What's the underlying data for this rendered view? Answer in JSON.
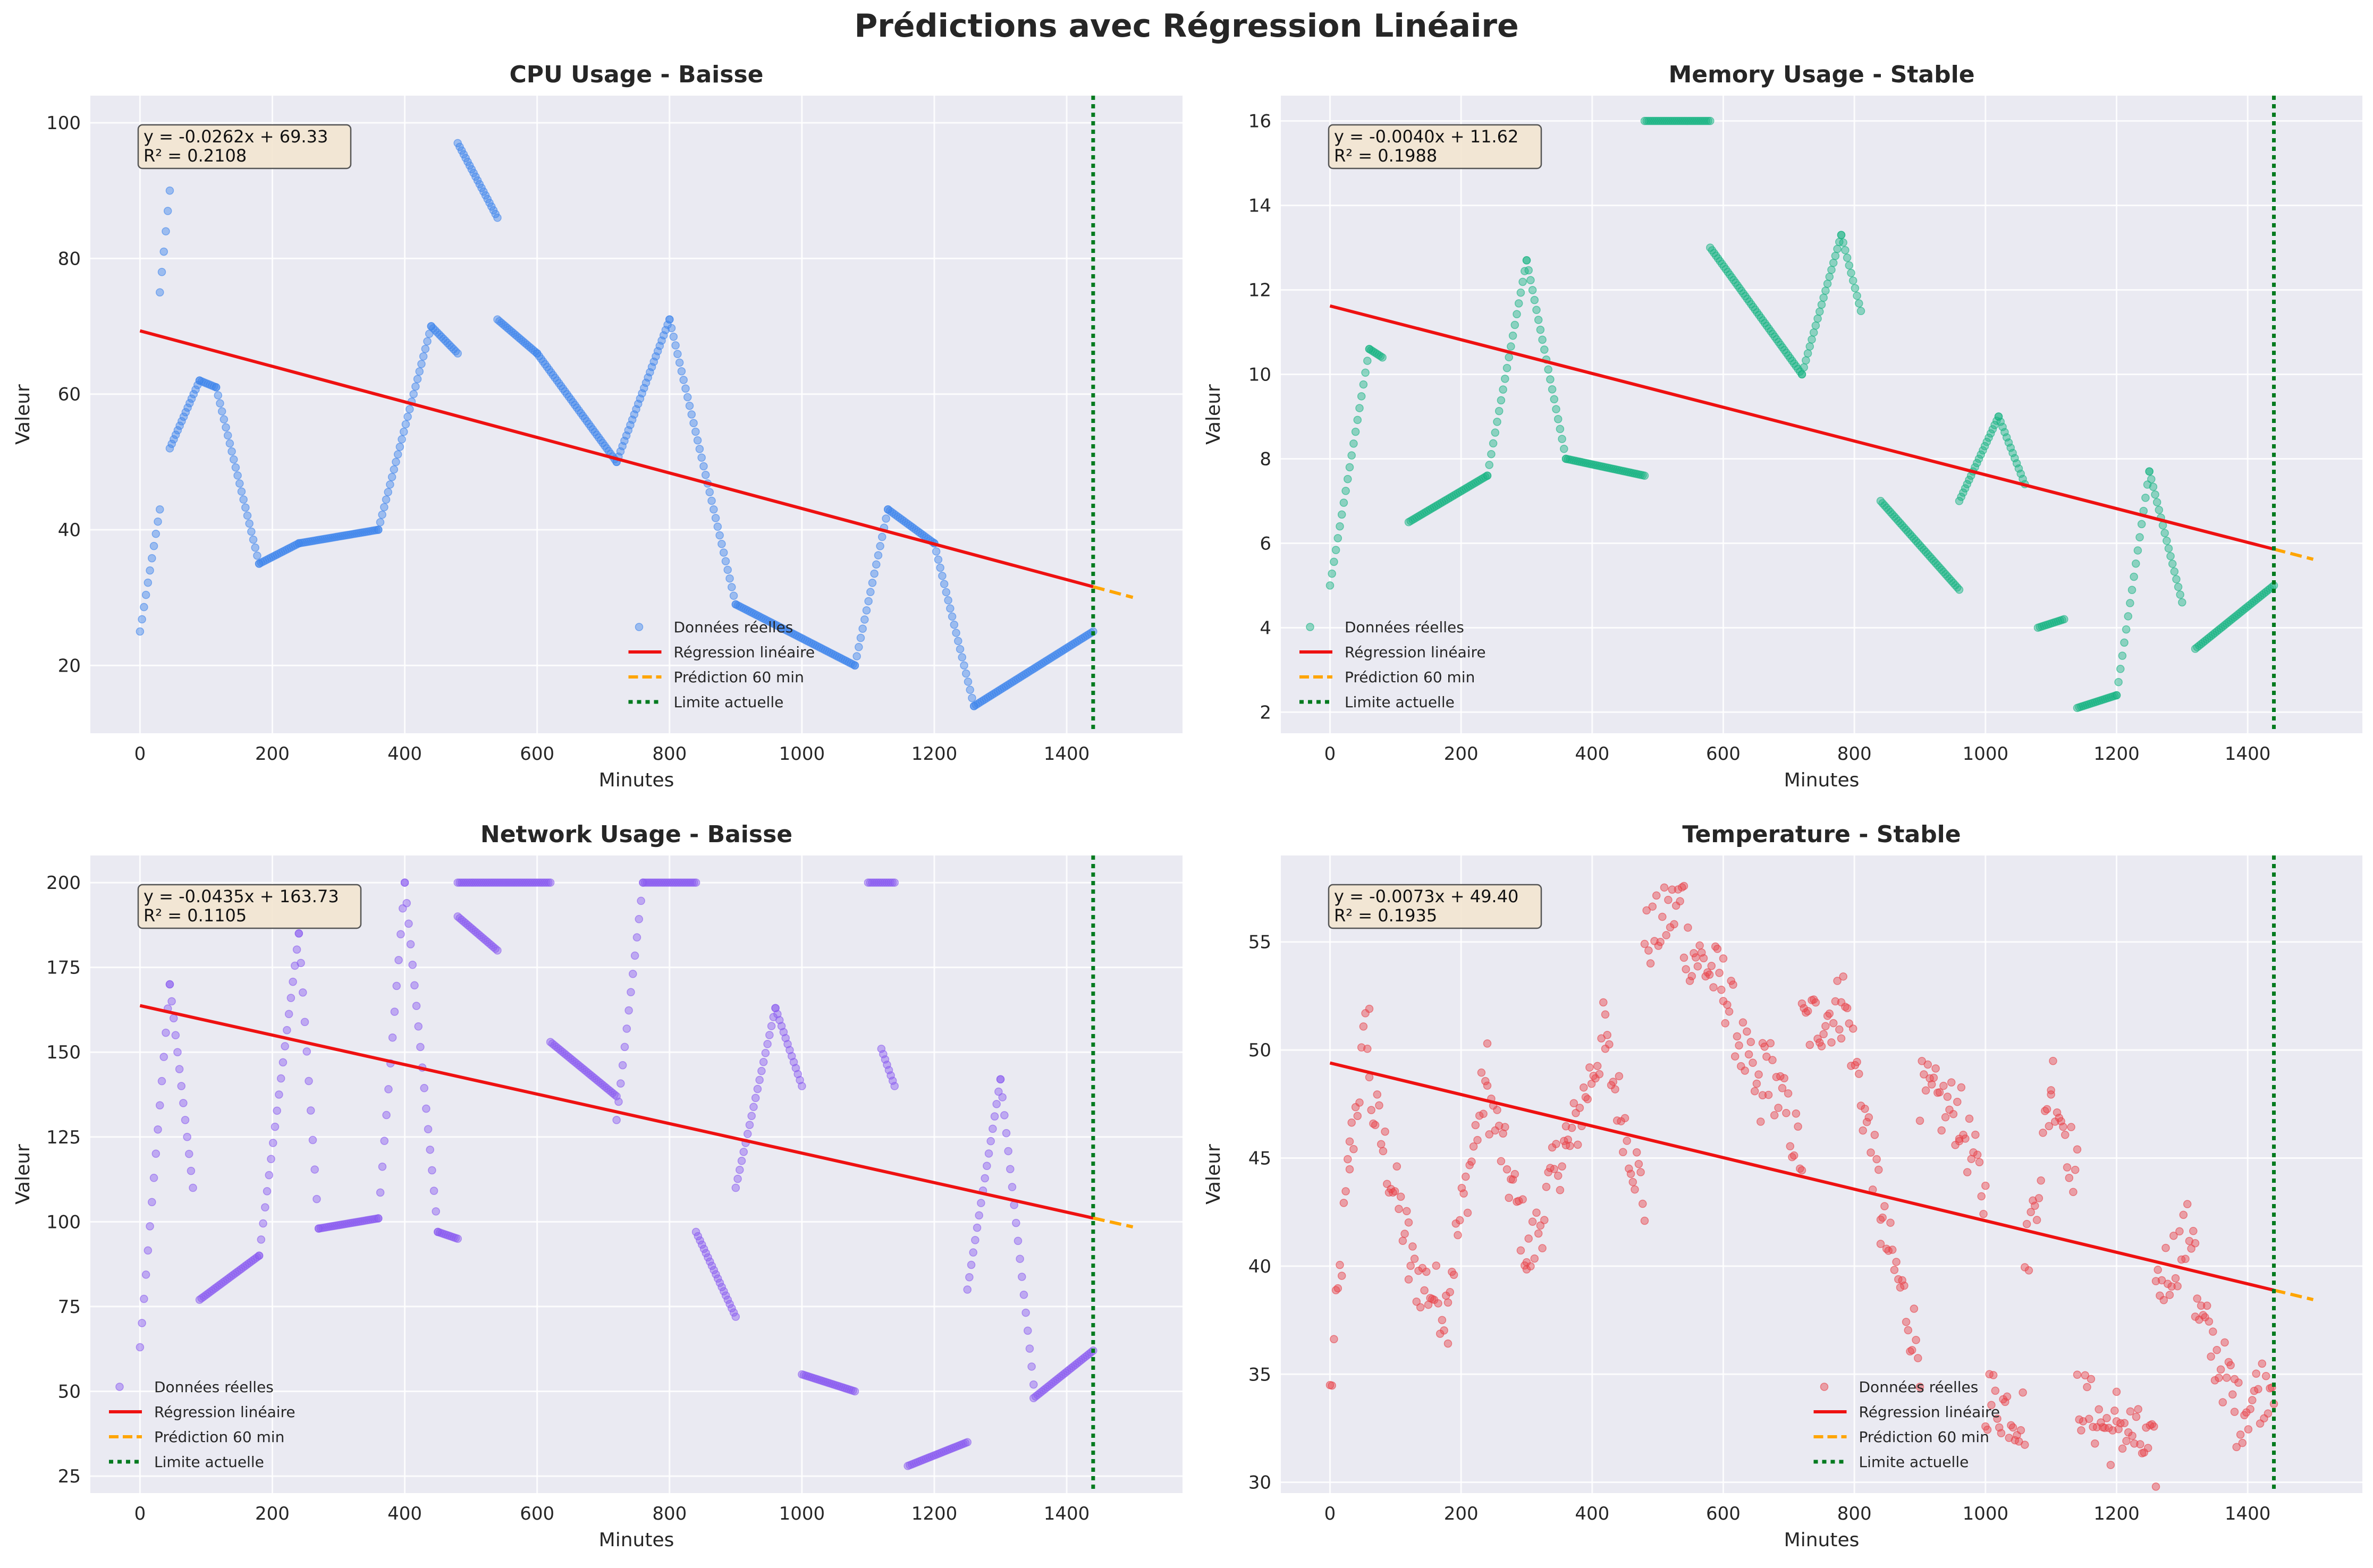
{
  "suptitle": "Prédictions avec Régression Linéaire",
  "legend_labels": {
    "real": "Données réelles",
    "regression": "Régression linéaire",
    "prediction": "Prédiction 60 min",
    "limit": "Limite actuelle"
  },
  "colors": {
    "regression": "#ee1111",
    "prediction": "#ffa500",
    "limit": "#007a1f",
    "background": "#eaeaf2",
    "grid": "#ffffff",
    "annotation_bg": "#f3e6d0"
  },
  "chart_data": [
    {
      "type": "scatter",
      "title": "CPU Usage - Baisse",
      "xlabel": "Minutes",
      "ylabel": "Valeur",
      "xlim": [
        -75,
        1575
      ],
      "ylim": [
        10,
        104
      ],
      "xticks": [
        0,
        200,
        400,
        600,
        800,
        1000,
        1200,
        1400
      ],
      "yticks": [
        20,
        40,
        60,
        80,
        100
      ],
      "color": "#3f86ec",
      "annotation": [
        "y = -0.0262x + 69.33",
        "R² = 0.2108"
      ],
      "regression": {
        "slope": -0.0262,
        "intercept": 69.33,
        "x_end": 1440,
        "pred_end": 1500
      },
      "limit_x": 1440,
      "legend": "lower-center",
      "series": [
        {
          "name": "Données réelles",
          "segments": [
            {
              "x0": 0,
              "x1": 30,
              "y0": 25,
              "y1": 43
            },
            {
              "x0": 30,
              "x1": 45,
              "y0": 75,
              "y1": 90
            },
            {
              "x0": 45,
              "x1": 90,
              "y0": 52,
              "y1": 62
            },
            {
              "x0": 90,
              "x1": 115,
              "y0": 62,
              "y1": 61
            },
            {
              "x0": 115,
              "x1": 180,
              "y0": 61,
              "y1": 35
            },
            {
              "x0": 180,
              "x1": 240,
              "y0": 35,
              "y1": 38
            },
            {
              "x0": 240,
              "x1": 360,
              "y0": 38,
              "y1": 40
            },
            {
              "x0": 360,
              "x1": 440,
              "y0": 40,
              "y1": 70
            },
            {
              "x0": 440,
              "x1": 480,
              "y0": 70,
              "y1": 66
            },
            {
              "x0": 480,
              "x1": 540,
              "y0": 97,
              "y1": 86
            },
            {
              "x0": 540,
              "x1": 600,
              "y0": 71,
              "y1": 66
            },
            {
              "x0": 600,
              "x1": 720,
              "y0": 66,
              "y1": 50
            },
            {
              "x0": 720,
              "x1": 800,
              "y0": 50,
              "y1": 71
            },
            {
              "x0": 800,
              "x1": 900,
              "y0": 71,
              "y1": 29
            },
            {
              "x0": 900,
              "x1": 1080,
              "y0": 29,
              "y1": 20
            },
            {
              "x0": 1080,
              "x1": 1130,
              "y0": 20,
              "y1": 43
            },
            {
              "x0": 1130,
              "x1": 1200,
              "y0": 43,
              "y1": 38
            },
            {
              "x0": 1200,
              "x1": 1260,
              "y0": 38,
              "y1": 14
            },
            {
              "x0": 1260,
              "x1": 1440,
              "y0": 14,
              "y1": 25
            }
          ]
        }
      ]
    },
    {
      "type": "scatter",
      "title": "Memory Usage - Stable",
      "xlabel": "Minutes",
      "ylabel": "Valeur",
      "xlim": [
        -75,
        1575
      ],
      "ylim": [
        1.5,
        16.6
      ],
      "xticks": [
        0,
        200,
        400,
        600,
        800,
        1000,
        1200,
        1400
      ],
      "yticks": [
        2,
        4,
        6,
        8,
        10,
        12,
        14,
        16
      ],
      "color": "#18b482",
      "annotation": [
        "y = -0.0040x + 11.62",
        "R² = 0.1988"
      ],
      "regression": {
        "slope": -0.004,
        "intercept": 11.62,
        "x_end": 1440,
        "pred_end": 1500
      },
      "limit_x": 1440,
      "legend": "lower-left",
      "series": [
        {
          "name": "Données réelles",
          "segments": [
            {
              "x0": 0,
              "x1": 60,
              "y0": 5,
              "y1": 10.6
            },
            {
              "x0": 60,
              "x1": 80,
              "y0": 10.6,
              "y1": 10.4
            },
            {
              "x0": 120,
              "x1": 240,
              "y0": 6.5,
              "y1": 7.6
            },
            {
              "x0": 240,
              "x1": 300,
              "y0": 7.6,
              "y1": 12.7
            },
            {
              "x0": 300,
              "x1": 360,
              "y0": 12.7,
              "y1": 8
            },
            {
              "x0": 360,
              "x1": 480,
              "y0": 8,
              "y1": 7.6
            },
            {
              "x0": 480,
              "x1": 580,
              "y0": 16,
              "y1": 16
            },
            {
              "x0": 580,
              "x1": 720,
              "y0": 13,
              "y1": 10
            },
            {
              "x0": 720,
              "x1": 780,
              "y0": 10,
              "y1": 13.3
            },
            {
              "x0": 780,
              "x1": 810,
              "y0": 13.3,
              "y1": 11.5
            },
            {
              "x0": 840,
              "x1": 960,
              "y0": 7,
              "y1": 4.9
            },
            {
              "x0": 960,
              "x1": 1020,
              "y0": 7,
              "y1": 9
            },
            {
              "x0": 1020,
              "x1": 1060,
              "y0": 9,
              "y1": 7.4
            },
            {
              "x0": 1080,
              "x1": 1120,
              "y0": 4,
              "y1": 4.2
            },
            {
              "x0": 1140,
              "x1": 1200,
              "y0": 2.1,
              "y1": 2.4
            },
            {
              "x0": 1200,
              "x1": 1250,
              "y0": 2.4,
              "y1": 7.7
            },
            {
              "x0": 1250,
              "x1": 1300,
              "y0": 7.7,
              "y1": 4.6
            },
            {
              "x0": 1320,
              "x1": 1440,
              "y0": 3.5,
              "y1": 5
            }
          ]
        }
      ]
    },
    {
      "type": "scatter",
      "title": "Network Usage - Baisse",
      "xlabel": "Minutes",
      "ylabel": "Valeur",
      "xlim": [
        -75,
        1575
      ],
      "ylim": [
        20,
        208
      ],
      "xticks": [
        0,
        200,
        400,
        600,
        800,
        1000,
        1200,
        1400
      ],
      "yticks": [
        25,
        50,
        75,
        100,
        125,
        150,
        175,
        200
      ],
      "color": "#8a5cf0",
      "annotation": [
        "y = -0.0435x + 163.73",
        "R² = 0.1105"
      ],
      "regression": {
        "slope": -0.0435,
        "intercept": 163.73,
        "x_end": 1440,
        "pred_end": 1500
      },
      "limit_x": 1440,
      "legend": "lower-left",
      "series": [
        {
          "name": "Données réelles",
          "segments": [
            {
              "x0": 0,
              "x1": 45,
              "y0": 63,
              "y1": 170
            },
            {
              "x0": 45,
              "x1": 80,
              "y0": 170,
              "y1": 110
            },
            {
              "x0": 90,
              "x1": 180,
              "y0": 77,
              "y1": 90
            },
            {
              "x0": 180,
              "x1": 240,
              "y0": 90,
              "y1": 185
            },
            {
              "x0": 240,
              "x1": 270,
              "y0": 185,
              "y1": 98
            },
            {
              "x0": 270,
              "x1": 360,
              "y0": 98,
              "y1": 101
            },
            {
              "x0": 360,
              "x1": 400,
              "y0": 101,
              "y1": 200
            },
            {
              "x0": 400,
              "x1": 450,
              "y0": 200,
              "y1": 97
            },
            {
              "x0": 450,
              "x1": 480,
              "y0": 97,
              "y1": 95
            },
            {
              "x0": 480,
              "x1": 540,
              "y0": 190,
              "y1": 180
            },
            {
              "x0": 480,
              "x1": 620,
              "y0": 200,
              "y1": 200
            },
            {
              "x0": 620,
              "x1": 720,
              "y0": 153,
              "y1": 137
            },
            {
              "x0": 720,
              "x1": 760,
              "y0": 130,
              "y1": 200
            },
            {
              "x0": 760,
              "x1": 840,
              "y0": 200,
              "y1": 200
            },
            {
              "x0": 840,
              "x1": 900,
              "y0": 97,
              "y1": 72
            },
            {
              "x0": 900,
              "x1": 960,
              "y0": 110,
              "y1": 163
            },
            {
              "x0": 960,
              "x1": 1000,
              "y0": 163,
              "y1": 140
            },
            {
              "x0": 1000,
              "x1": 1080,
              "y0": 55,
              "y1": 50
            },
            {
              "x0": 1100,
              "x1": 1140,
              "y0": 200,
              "y1": 200
            },
            {
              "x0": 1120,
              "x1": 1140,
              "y0": 151,
              "y1": 140
            },
            {
              "x0": 1160,
              "x1": 1250,
              "y0": 28,
              "y1": 35
            },
            {
              "x0": 1250,
              "x1": 1300,
              "y0": 80,
              "y1": 142
            },
            {
              "x0": 1300,
              "x1": 1350,
              "y0": 142,
              "y1": 52
            },
            {
              "x0": 1350,
              "x1": 1440,
              "y0": 48,
              "y1": 62
            }
          ]
        }
      ]
    },
    {
      "type": "scatter",
      "title": "Temperature - Stable",
      "xlabel": "Minutes",
      "ylabel": "Valeur",
      "xlim": [
        -75,
        1575
      ],
      "ylim": [
        29.5,
        59
      ],
      "xticks": [
        0,
        200,
        400,
        600,
        800,
        1000,
        1200,
        1400
      ],
      "yticks": [
        30,
        35,
        40,
        45,
        50,
        55
      ],
      "color": "#e8434a",
      "annotation": [
        "y = -0.0073x + 49.40",
        "R² = 0.1935"
      ],
      "regression": {
        "slope": -0.0073,
        "intercept": 49.4,
        "x_end": 1440,
        "pred_end": 1500
      },
      "limit_x": 1440,
      "legend": "lower-center",
      "series": [
        {
          "name": "Données réelles",
          "segments": [
            {
              "x0": 0,
              "x1": 30,
              "y0": 34,
              "y1": 45
            },
            {
              "x0": 30,
              "x1": 60,
              "y0": 45,
              "y1": 52
            },
            {
              "x0": 60,
              "x1": 120,
              "y0": 48,
              "y1": 41
            },
            {
              "x0": 120,
              "x1": 180,
              "y0": 40,
              "y1": 38
            },
            {
              "x0": 180,
              "x1": 240,
              "y0": 39,
              "y1": 49
            },
            {
              "x0": 240,
              "x1": 300,
              "y0": 48,
              "y1": 41
            },
            {
              "x0": 300,
              "x1": 360,
              "y0": 40,
              "y1": 46
            },
            {
              "x0": 360,
              "x1": 420,
              "y0": 45,
              "y1": 51
            },
            {
              "x0": 420,
              "x1": 480,
              "y0": 50,
              "y1": 43
            },
            {
              "x0": 480,
              "x1": 540,
              "y0": 55,
              "y1": 57
            },
            {
              "x0": 540,
              "x1": 600,
              "y0": 55,
              "y1": 53
            },
            {
              "x0": 600,
              "x1": 660,
              "y0": 53,
              "y1": 47
            },
            {
              "x0": 660,
              "x1": 720,
              "y0": 50,
              "y1": 45
            },
            {
              "x0": 720,
              "x1": 780,
              "y0": 51,
              "y1": 52
            },
            {
              "x0": 780,
              "x1": 840,
              "y0": 53,
              "y1": 43
            },
            {
              "x0": 840,
              "x1": 900,
              "y0": 42,
              "y1": 36
            },
            {
              "x0": 900,
              "x1": 960,
              "y0": 48,
              "y1": 47
            },
            {
              "x0": 960,
              "x1": 1000,
              "y0": 47,
              "y1": 43
            },
            {
              "x0": 1000,
              "x1": 1060,
              "y0": 34,
              "y1": 33
            },
            {
              "x0": 1060,
              "x1": 1100,
              "y0": 40,
              "y1": 48
            },
            {
              "x0": 1100,
              "x1": 1140,
              "y0": 49,
              "y1": 44
            },
            {
              "x0": 1140,
              "x1": 1200,
              "y0": 34,
              "y1": 32
            },
            {
              "x0": 1200,
              "x1": 1260,
              "y0": 33,
              "y1": 31
            },
            {
              "x0": 1260,
              "x1": 1320,
              "y0": 39,
              "y1": 42
            },
            {
              "x0": 1320,
              "x1": 1380,
              "y0": 38,
              "y1": 34
            },
            {
              "x0": 1380,
              "x1": 1440,
              "y0": 33,
              "y1": 35
            }
          ]
        }
      ]
    }
  ]
}
